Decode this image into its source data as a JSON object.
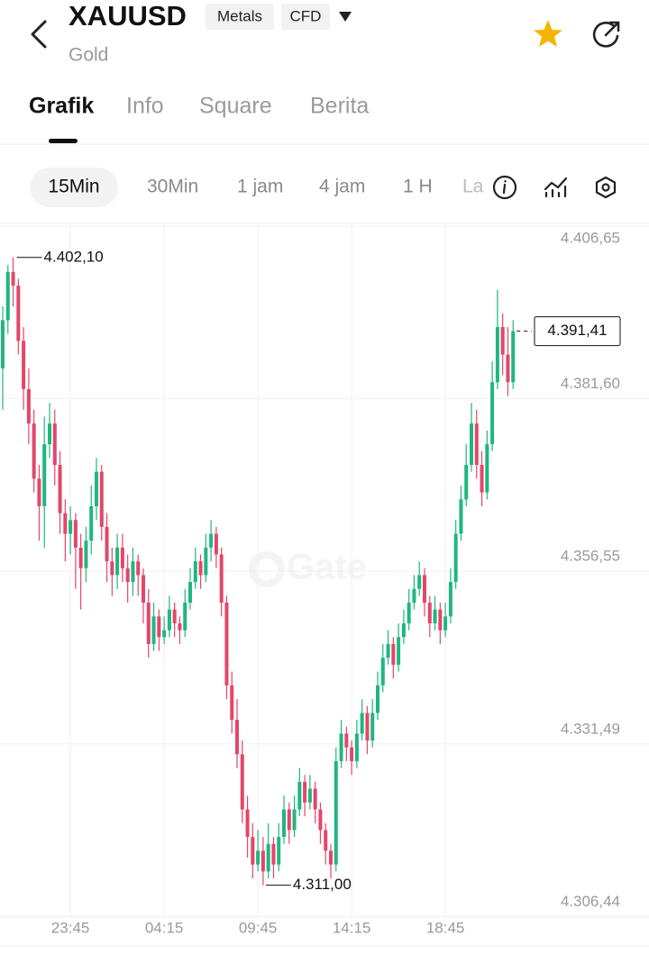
{
  "header": {
    "symbol": "XAUUSD",
    "tags": [
      "Metals",
      "CFD"
    ],
    "name": "Gold"
  },
  "tabs": [
    "Grafik",
    "Info",
    "Square",
    "Berita"
  ],
  "intervals": [
    "15Min",
    "30Min",
    "1 jam",
    "4 jam",
    "1 H",
    "La"
  ],
  "watermark": "Gate",
  "chart_data": {
    "type": "candlestick",
    "categories": [
      null,
      null,
      null,
      null,
      null,
      null,
      null,
      null,
      null,
      null,
      null,
      null,
      null,
      "23:45",
      null,
      null,
      null,
      null,
      null,
      null,
      null,
      null,
      null,
      null,
      null,
      null,
      null,
      null,
      null,
      null,
      null,
      "04:15",
      null,
      null,
      null,
      null,
      null,
      null,
      null,
      null,
      null,
      null,
      null,
      null,
      null,
      null,
      null,
      null,
      null,
      "09:45",
      null,
      null,
      null,
      null,
      null,
      null,
      null,
      null,
      null,
      null,
      null,
      null,
      null,
      null,
      null,
      null,
      null,
      "14:15",
      null,
      null,
      null,
      null,
      null,
      null,
      null,
      null,
      null,
      null,
      null,
      null,
      null,
      null,
      null,
      null,
      null,
      "18:45",
      null,
      null,
      null,
      null,
      null,
      null,
      null,
      null,
      null,
      null,
      null,
      null,
      null
    ],
    "open": [
      4386,
      4393,
      4400,
      4398,
      4390,
      4383,
      4378,
      4370,
      4366,
      4375,
      4378,
      4372,
      4365,
      4362,
      4364,
      4360,
      4357,
      4361,
      4366,
      4371,
      4363,
      4358,
      4356,
      4360,
      4357,
      4355,
      4358,
      4356,
      4352,
      4346,
      4350,
      4347,
      4348,
      4351,
      4349,
      4348,
      4352,
      4355,
      4358,
      4356,
      4360,
      4362,
      4359,
      4352,
      4340,
      4335,
      4330,
      4322,
      4318,
      4314,
      4316,
      4313,
      4317,
      4314,
      4318,
      4322,
      4319,
      4322,
      4326,
      4323,
      4325,
      4322,
      4319,
      4316,
      4314,
      4329,
      4333,
      4331,
      4329,
      4333,
      4336,
      4332,
      4336,
      4340,
      4344,
      4346,
      4343,
      4347,
      4349,
      4352,
      4354,
      4356,
      4352,
      4349,
      4351,
      4348,
      4350,
      4355,
      4362,
      4367,
      4372,
      4378,
      4372,
      4368,
      4375,
      4384,
      4392,
      4388,
      4384
    ],
    "high": [
      4395,
      4401,
      4402.1,
      4399,
      4392,
      4386,
      4380,
      4372,
      4379,
      4381,
      4380,
      4374,
      4367,
      4366,
      4365,
      4362,
      4363,
      4369,
      4373,
      4372,
      4365,
      4360,
      4362,
      4362,
      4359,
      4360,
      4359,
      4357,
      4354,
      4352,
      4351,
      4350,
      4353,
      4352,
      4350,
      4354,
      4357,
      4360,
      4359,
      4362,
      4364,
      4363,
      4360,
      4353,
      4342,
      4338,
      4332,
      4324,
      4320,
      4319,
      4318,
      4320,
      4318,
      4320,
      4324,
      4323,
      4324,
      4328,
      4327,
      4327,
      4326,
      4323,
      4320,
      4317,
      4331,
      4335,
      4334,
      4332,
      4335,
      4338,
      4337,
      4338,
      4342,
      4346,
      4348,
      4347,
      4349,
      4351,
      4354,
      4356,
      4358,
      4357,
      4353,
      4353,
      4352,
      4352,
      4357,
      4364,
      4369,
      4375,
      4381,
      4380,
      4374,
      4377,
      4387,
      4397.4,
      4394,
      4392,
      4393
    ],
    "low": [
      4380,
      4391,
      4395,
      4388,
      4380,
      4375,
      4368,
      4361,
      4360,
      4373,
      4369,
      4362,
      4358,
      4359,
      4354,
      4351,
      4355,
      4359,
      4364,
      4361,
      4355,
      4353,
      4354,
      4355,
      4352,
      4353,
      4353,
      4349,
      4344,
      4345,
      4345,
      4346,
      4347,
      4347,
      4346,
      4347,
      4351,
      4354,
      4354,
      4355,
      4358,
      4357,
      4350,
      4338,
      4333,
      4328,
      4320,
      4315,
      4312,
      4313,
      4311,
      4312,
      4312,
      4313,
      4317,
      4317,
      4318,
      4321,
      4321,
      4322,
      4320,
      4317,
      4314,
      4312,
      4313,
      4328,
      4329,
      4327,
      4328,
      4332,
      4330,
      4331,
      4335,
      4339,
      4343,
      4341,
      4342,
      4346,
      4348,
      4351,
      4353,
      4350,
      4347,
      4348,
      4346,
      4347,
      4349,
      4354,
      4361,
      4366,
      4371,
      4370,
      4366,
      4367,
      4374,
      4383,
      4385,
      4382,
      4383
    ],
    "close": [
      4393,
      4400,
      4398,
      4390,
      4383,
      4378,
      4370,
      4366,
      4375,
      4378,
      4372,
      4365,
      4362,
      4364,
      4360,
      4357,
      4361,
      4366,
      4371,
      4363,
      4358,
      4356,
      4360,
      4357,
      4355,
      4358,
      4356,
      4352,
      4346,
      4350,
      4347,
      4348,
      4351,
      4349,
      4348,
      4352,
      4355,
      4358,
      4356,
      4360,
      4362,
      4359,
      4352,
      4340,
      4335,
      4330,
      4322,
      4318,
      4314,
      4316,
      4313,
      4317,
      4314,
      4318,
      4322,
      4319,
      4322,
      4326,
      4323,
      4325,
      4322,
      4319,
      4316,
      4314,
      4329,
      4333,
      4331,
      4329,
      4333,
      4336,
      4332,
      4336,
      4340,
      4344,
      4346,
      4343,
      4347,
      4349,
      4352,
      4354,
      4356,
      4352,
      4349,
      4351,
      4348,
      4350,
      4355,
      4362,
      4367,
      4372,
      4378,
      4372,
      4368,
      4375,
      4384,
      4392,
      4388,
      4384,
      4391.41
    ],
    "up_color": "#20b67f",
    "down_color": "#e3466a",
    "high_label": "4.402,10",
    "low_label": "4.311,00",
    "last_label": "4.391,41",
    "ylim": [
      4306.44,
      4406.65
    ],
    "yticks": [
      {
        "value": 4306.44,
        "label": "4.306,44"
      },
      {
        "value": 4331.49,
        "label": "4.331,49"
      },
      {
        "value": 4356.55,
        "label": "4.356,55"
      },
      {
        "value": 4381.6,
        "label": "4.381,60"
      },
      {
        "value": 4406.65,
        "label": "4.406,65"
      }
    ],
    "grid": true
  }
}
